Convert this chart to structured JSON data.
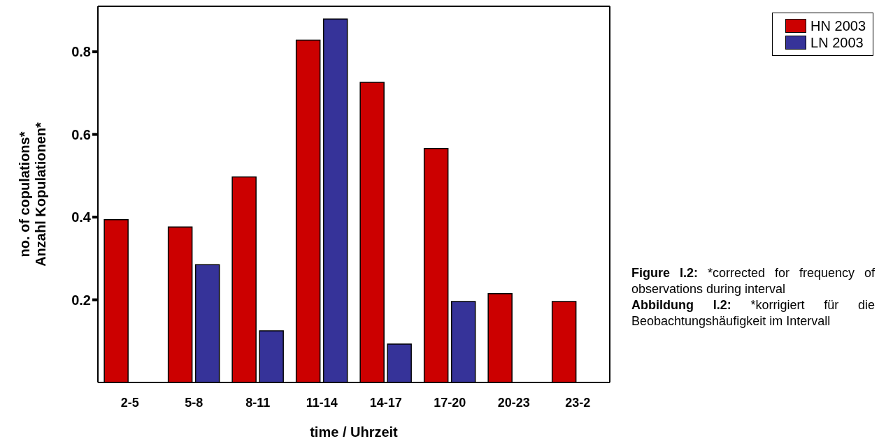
{
  "chart_data": {
    "type": "bar",
    "xlabel": "time / Uhrzeit",
    "ylabel": "no. of copulations*\nAnzahl Kopulationen*",
    "categories": [
      "2-5",
      "5-8",
      "8-11",
      "11-14",
      "14-17",
      "17-20",
      "20-23",
      "23-2"
    ],
    "series": [
      {
        "name": "HN 2003",
        "color": "#cc0000",
        "values": [
          0.394,
          0.376,
          0.497,
          0.828,
          0.726,
          0.566,
          0.215,
          0.196
        ]
      },
      {
        "name": "LN 2003",
        "color": "#363399",
        "values": [
          null,
          0.285,
          0.125,
          0.879,
          0.093,
          0.196,
          null,
          null
        ]
      }
    ],
    "ylim": [
      0,
      0.91
    ],
    "yticks": [
      0.2,
      0.4,
      0.6,
      0.8
    ],
    "grid": false,
    "legend": "top right",
    "annotations": [
      "Figure I.2: *corrected for frequency of observations during interval",
      "Abbildung I.2: *korrigiert für die Beobachtungshäufigkeit im Intervall"
    ]
  }
}
